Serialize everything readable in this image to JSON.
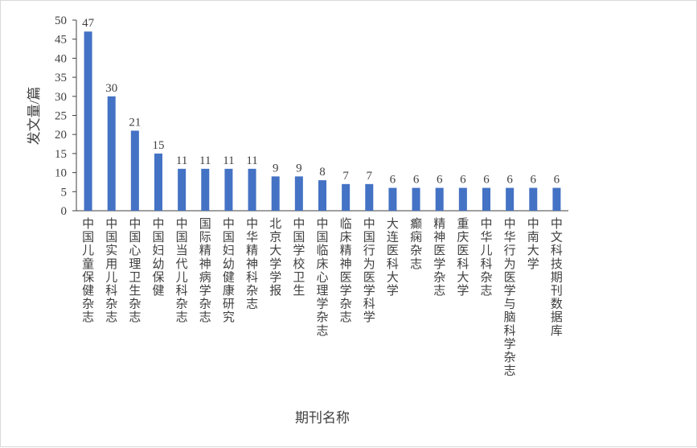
{
  "chart_data": {
    "type": "bar",
    "title": "",
    "xlabel": "期刊名称",
    "ylabel": "发文量/篇",
    "ylim": [
      0,
      50
    ],
    "yticks": [
      0,
      5,
      10,
      15,
      20,
      25,
      30,
      35,
      40,
      45,
      50
    ],
    "grid": false,
    "legend": "none",
    "bar_color": "#4472C4",
    "categories": [
      "中国儿童保健杂志",
      "中国实用儿科杂志",
      "中国心理卫生杂志",
      "中国妇幼保健",
      "中国当代儿科杂志",
      "国际精神病学杂志",
      "中国妇幼健康研究",
      "中华精神科杂志",
      "北京大学学报",
      "中国学校卫生",
      "中国临床心理学杂志",
      "临床精神医学杂志",
      "中国行为医学科学",
      "大连医科大学",
      "癫痫杂志",
      "精神医学杂志",
      "重庆医科大学",
      "中华儿科杂志",
      "中华行为医学与脑科学杂志",
      "中南大学",
      "中文科技期刊数据库"
    ],
    "values": [
      47,
      30,
      21,
      15,
      11,
      11,
      11,
      11,
      9,
      9,
      8,
      7,
      7,
      6,
      6,
      6,
      6,
      6,
      6,
      6,
      6
    ]
  }
}
